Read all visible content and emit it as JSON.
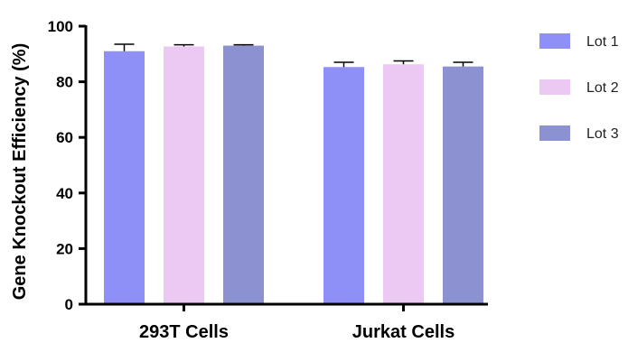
{
  "chart_data": {
    "type": "bar",
    "ylabel": "Gene Knockout Efficiency (%)",
    "xlabel": "",
    "ylim": [
      0,
      100
    ],
    "yticks": [
      0,
      20,
      40,
      60,
      80,
      100
    ],
    "categories": [
      "293T Cells",
      "Jurkat Cells"
    ],
    "series": [
      {
        "name": "Lot 1",
        "values": [
          91,
          85.3
        ],
        "errors": [
          2.5,
          1.7
        ],
        "color": "#8f8ff8"
      },
      {
        "name": "Lot 2",
        "values": [
          92.7,
          86.3
        ],
        "errors": [
          0.6,
          1.2
        ],
        "color": "#ebc9f3"
      },
      {
        "name": "Lot 3",
        "values": [
          93,
          85.5
        ],
        "errors": [
          0.3,
          1.5
        ],
        "color": "#8c92d1"
      }
    ],
    "legend_position": "right",
    "grid": false
  }
}
